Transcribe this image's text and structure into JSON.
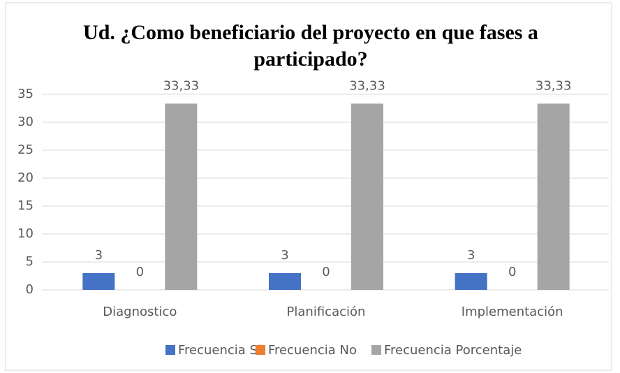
{
  "chart_data": {
    "type": "bar",
    "title": "Ud. ¿Como beneficiario del proyecto en que fases a participado?",
    "categories": [
      "Diagnostico",
      "Planificación",
      "Implementación"
    ],
    "series": [
      {
        "name": "Frecuencia Si",
        "color": "#4472c4",
        "values": [
          3,
          3,
          3
        ]
      },
      {
        "name": "Frecuencia No",
        "color": "#ed7d31",
        "values": [
          0,
          0,
          0
        ]
      },
      {
        "name": "Frecuencia Porcentaje",
        "color": "#a5a5a5",
        "values": [
          33.33,
          33.33,
          33.33
        ],
        "value_labels": [
          "33,33",
          "33,33",
          "33,33"
        ]
      }
    ],
    "ylim": [
      0,
      35
    ],
    "yticks": [
      0,
      5,
      10,
      15,
      20,
      25,
      30,
      35
    ],
    "grid": true,
    "legend": "bottom"
  }
}
